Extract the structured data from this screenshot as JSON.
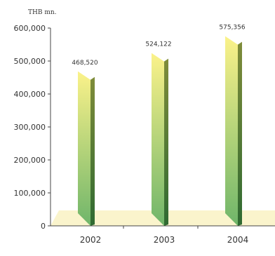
{
  "chart_data": {
    "type": "bar",
    "unit_label": "THB mn.",
    "categories": [
      "2002",
      "2003",
      "2004"
    ],
    "values": [
      468520,
      524122,
      575356
    ],
    "value_labels": [
      "468,520",
      "524,122",
      "575,356"
    ],
    "ylim": [
      0,
      600000
    ],
    "yticks": [
      {
        "value": 0,
        "label": "0"
      },
      {
        "value": 100000,
        "label": "100,000"
      },
      {
        "value": 200000,
        "label": "200,000"
      },
      {
        "value": 300000,
        "label": "300,000"
      },
      {
        "value": 400000,
        "label": "400,000"
      },
      {
        "value": 500000,
        "label": "500,000"
      },
      {
        "value": 600000,
        "label": "600,000"
      }
    ],
    "grid": false,
    "colors": {
      "bar_top": "#fbf28a",
      "bar_bottom": "#6fb56a",
      "bar_side_top": "#7f8c3a",
      "bar_side_bottom": "#2f6a32",
      "floor": "#faf4cc",
      "axis": "#444444",
      "text": "#333333"
    }
  }
}
